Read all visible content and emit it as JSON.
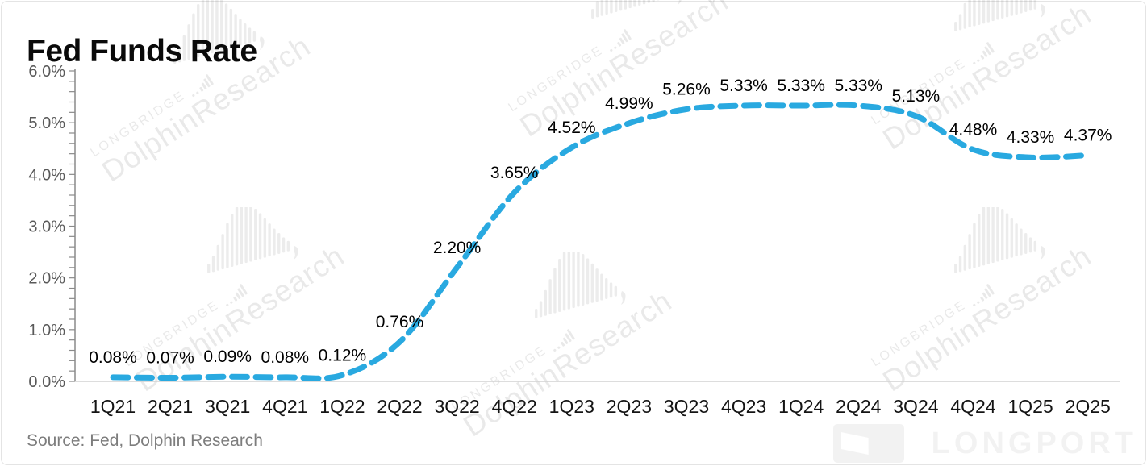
{
  "page": {
    "title": "Fed Funds Rate",
    "source_note": "Source: Fed, Dolphin Research"
  },
  "watermark": {
    "brand_small": "LONGBRIDGE",
    "brand_large": "DolphinResearch",
    "footer_brand": "LONGPORT"
  },
  "chart_data": {
    "type": "line",
    "title": "Fed Funds Rate",
    "categories": [
      "1Q21",
      "2Q21",
      "3Q21",
      "4Q21",
      "1Q22",
      "2Q22",
      "3Q22",
      "4Q22",
      "1Q23",
      "2Q23",
      "3Q23",
      "4Q23",
      "1Q24",
      "2Q24",
      "3Q24",
      "4Q24",
      "1Q25",
      "2Q25"
    ],
    "values": [
      0.08,
      0.07,
      0.09,
      0.08,
      0.12,
      0.76,
      2.2,
      3.65,
      4.52,
      4.99,
      5.26,
      5.33,
      5.33,
      5.33,
      5.13,
      4.48,
      4.33,
      4.37
    ],
    "point_labels": [
      "0.08%",
      "0.07%",
      "0.09%",
      "0.08%",
      "0.12%",
      "0.76%",
      "2.20%",
      "3.65%",
      "4.52%",
      "4.99%",
      "5.26%",
      "5.33%",
      "5.33%",
      "5.33%",
      "5.13%",
      "4.48%",
      "4.33%",
      "4.37%"
    ],
    "xlabel": "",
    "ylabel": "",
    "ylim": [
      0,
      6
    ],
    "ytick_step": 1,
    "ytick_minor_step": 0.2,
    "ytick_labels": [
      "0.0%",
      "1.0%",
      "2.0%",
      "3.0%",
      "4.0%",
      "5.0%",
      "6.0%"
    ],
    "line_color": "#29A9E0",
    "line_style": "dashed",
    "marker": "none",
    "grid": false,
    "legend": "none"
  }
}
